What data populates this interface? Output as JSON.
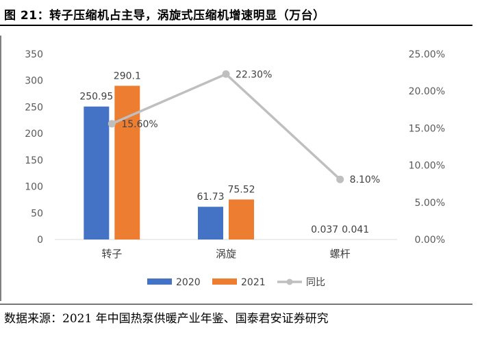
{
  "title": "图 21：转子压缩机占主导，涡旋式压缩机增速明显（万台）",
  "source": "数据来源：2021 年中国热泵供暖产业年鉴、国泰君安证券研究",
  "chart_data": {
    "type": "bar",
    "categories": [
      "转子",
      "涡旋",
      "螺杆"
    ],
    "series": [
      {
        "name": "2020",
        "type": "bar",
        "color": "#4472C4",
        "values": [
          250.95,
          61.73,
          0.037
        ],
        "labels": [
          "250.95",
          "61.73",
          "0.037"
        ]
      },
      {
        "name": "2021",
        "type": "bar",
        "color": "#ED7D31",
        "values": [
          290.1,
          75.52,
          0.041
        ],
        "labels": [
          "290.1",
          "75.52",
          "0.041"
        ]
      },
      {
        "name": "同比",
        "type": "line",
        "axis": "right",
        "color": "#BFBFBF",
        "values": [
          15.6,
          22.3,
          8.1
        ],
        "labels": [
          "15.60%",
          "22.30%",
          "8.10%"
        ]
      }
    ],
    "y_left": {
      "min": 0,
      "max": 350,
      "ticks": [
        "0",
        "50",
        "100",
        "150",
        "200",
        "250",
        "300",
        "350"
      ]
    },
    "y_right": {
      "min": 0,
      "max": 25,
      "ticks": [
        "0.00%",
        "5.00%",
        "10.00%",
        "15.00%",
        "20.00%",
        "25.00%"
      ]
    },
    "grid": false,
    "legend": "bottom"
  }
}
